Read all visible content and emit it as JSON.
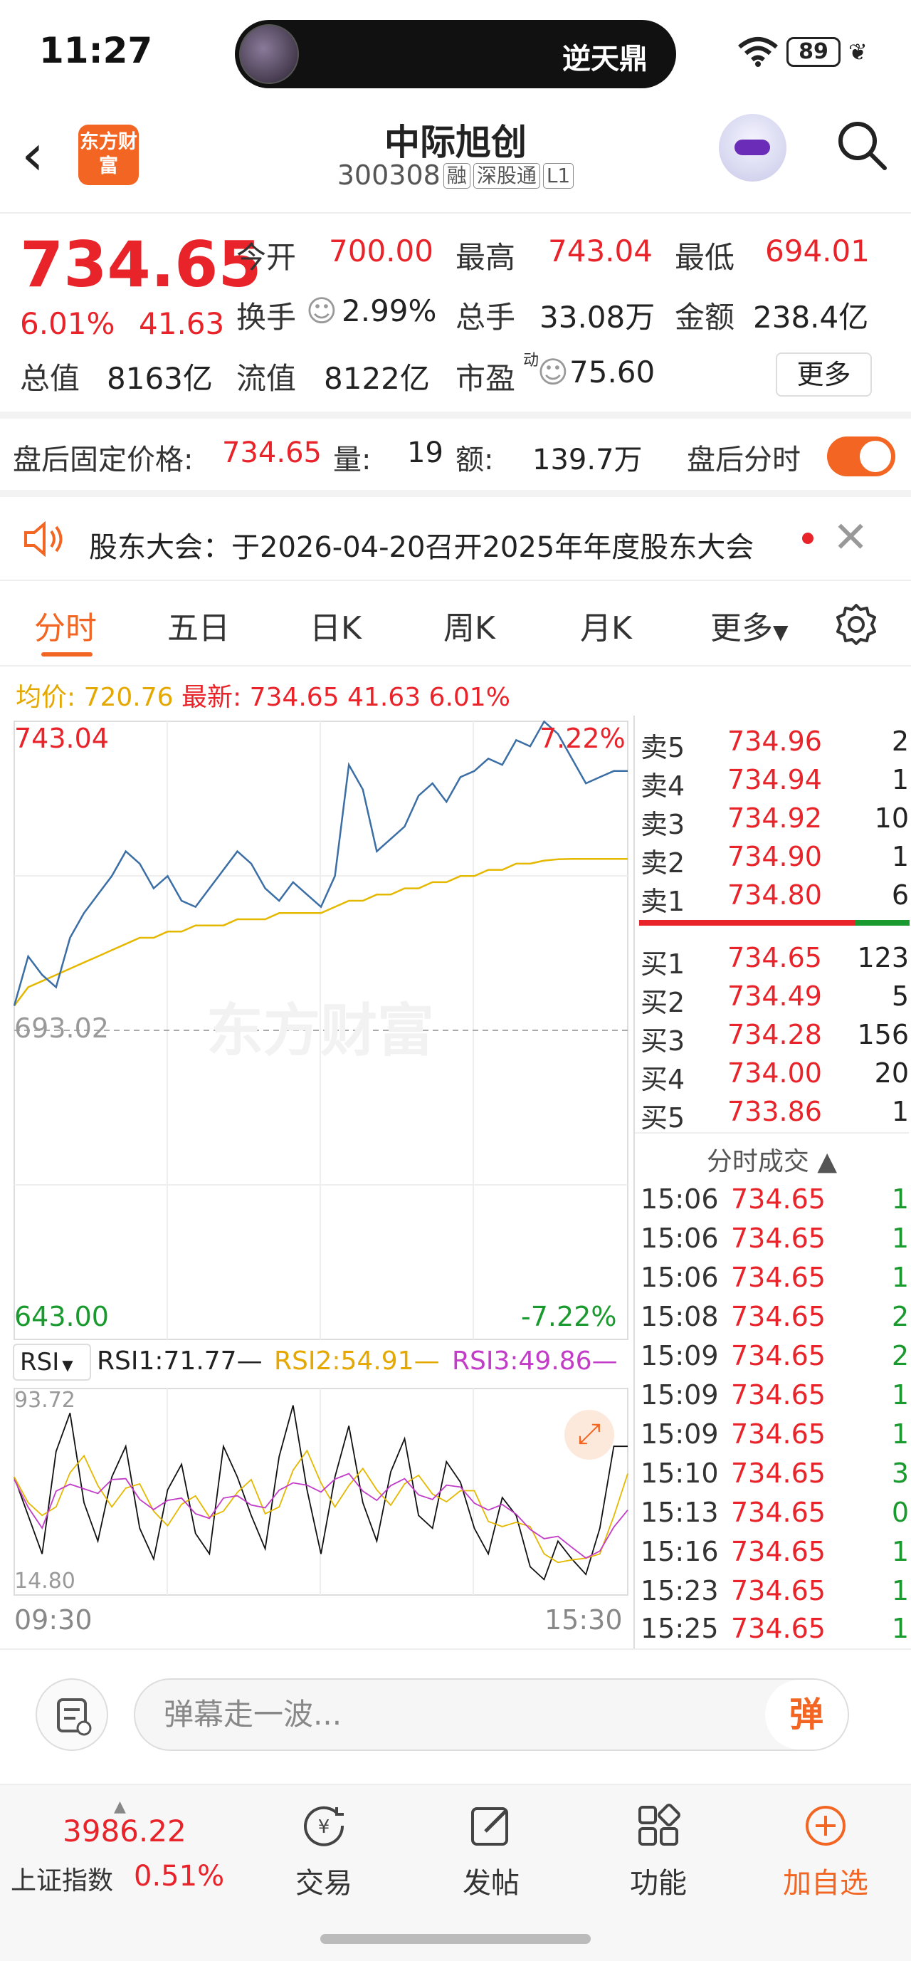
{
  "status_bar": {
    "time": "11:27",
    "island_text": "逆天鼎",
    "battery": "89"
  },
  "header": {
    "logo": "东方财富",
    "name": "中际旭创",
    "code": "300308",
    "tags": [
      "融",
      "深股通",
      "L1"
    ]
  },
  "quote": {
    "price": "734.65",
    "change_pct": "6.01%",
    "change": "41.63",
    "fields": [
      {
        "label": "今开",
        "value": "700.00",
        "color": "red"
      },
      {
        "label": "最高",
        "value": "743.04",
        "color": "red"
      },
      {
        "label": "最低",
        "value": "694.01",
        "color": "red"
      },
      {
        "label": "换手",
        "value": "2.99%",
        "color": "black"
      },
      {
        "label": "总手",
        "value": "33.08万",
        "color": "black"
      },
      {
        "label": "金额",
        "value": "238.4亿",
        "color": "black"
      },
      {
        "label": "总值",
        "value": "8163亿",
        "color": "black"
      },
      {
        "label": "流值",
        "value": "8122亿",
        "color": "black"
      },
      {
        "label": "市盈",
        "value": "75.60",
        "color": "black"
      }
    ],
    "pe_superscript": "动",
    "more": "更多"
  },
  "after_hours": {
    "label": "盘后固定价格:",
    "price": "734.65",
    "vol_label": "量:",
    "vol": "19",
    "amt_label": "额:",
    "amt": "139.7万",
    "toggle_label": "盘后分时",
    "toggle_on": true
  },
  "notice": {
    "text": "股东大会：于2026-04-20召开2025年年度股东大会"
  },
  "tabs": [
    {
      "label": "分时",
      "active": true
    },
    {
      "label": "五日",
      "active": false
    },
    {
      "label": "日K",
      "active": false
    },
    {
      "label": "周K",
      "active": false
    },
    {
      "label": "月K",
      "active": false
    },
    {
      "label": "更多",
      "active": false
    }
  ],
  "info_line": {
    "avg_label": "均价:",
    "avg": "720.76",
    "last_label": "最新:",
    "last": "734.65",
    "chg": "41.63",
    "pct": "6.01%"
  },
  "chart": {
    "y_high": "743.04",
    "y_mid": "693.02",
    "y_low": "643.00",
    "pct_high": "7.22%",
    "pct_low": "-7.22%",
    "watermark": "东方财富",
    "x_start": "09:30",
    "x_end": "15:30",
    "rsi": {
      "selector": "RSI",
      "rsi1": "RSI1:71.77—",
      "rsi2": "RSI2:54.91—",
      "rsi3": "RSI3:49.86—",
      "top": "93.72",
      "bottom": "14.80"
    }
  },
  "chart_data": {
    "type": "line",
    "title": "",
    "xlabel": "",
    "ylabel": "",
    "x_range": [
      "09:30",
      "15:30"
    ],
    "ylim": [
      643.0,
      743.04
    ],
    "series": [
      {
        "name": "最新",
        "values": [
          697,
          705,
          702,
          700,
          708,
          712,
          715,
          718,
          722,
          720,
          716,
          718,
          714,
          713,
          716,
          719,
          722,
          720,
          716,
          714,
          717,
          715,
          713,
          718,
          736,
          732,
          722,
          724,
          726,
          731,
          733,
          730,
          734,
          735,
          737,
          736,
          740,
          739,
          743,
          741,
          737,
          733,
          734,
          735,
          735
        ]
      },
      {
        "name": "均价",
        "values": [
          697,
          700,
          701,
          702,
          703,
          704,
          705,
          706,
          707,
          708,
          708,
          709,
          709,
          710,
          710,
          710,
          711,
          711,
          711,
          712,
          712,
          712,
          712,
          713,
          714,
          714,
          715,
          715,
          716,
          716,
          717,
          717,
          718,
          718,
          719,
          719,
          720,
          720,
          720.5,
          720.7,
          720.76,
          720.76,
          720.76,
          720.76,
          720.76
        ]
      }
    ]
  },
  "order_book": {
    "asks": [
      {
        "label": "卖5",
        "price": "734.96",
        "vol": "2"
      },
      {
        "label": "卖4",
        "price": "734.94",
        "vol": "1"
      },
      {
        "label": "卖3",
        "price": "734.92",
        "vol": "10"
      },
      {
        "label": "卖2",
        "price": "734.90",
        "vol": "1"
      },
      {
        "label": "卖1",
        "price": "734.80",
        "vol": "6"
      }
    ],
    "bids": [
      {
        "label": "买1",
        "price": "734.65",
        "vol": "123"
      },
      {
        "label": "买2",
        "price": "734.49",
        "vol": "5"
      },
      {
        "label": "买3",
        "price": "734.28",
        "vol": "156"
      },
      {
        "label": "买4",
        "price": "734.00",
        "vol": "20"
      },
      {
        "label": "买5",
        "price": "733.86",
        "vol": "1"
      }
    ],
    "ticks_title": "分时成交 ▲",
    "ticks": [
      {
        "time": "15:06",
        "price": "734.65",
        "vol": "1"
      },
      {
        "time": "15:06",
        "price": "734.65",
        "vol": "1"
      },
      {
        "time": "15:06",
        "price": "734.65",
        "vol": "1"
      },
      {
        "time": "15:08",
        "price": "734.65",
        "vol": "2"
      },
      {
        "time": "15:09",
        "price": "734.65",
        "vol": "2"
      },
      {
        "time": "15:09",
        "price": "734.65",
        "vol": "1"
      },
      {
        "time": "15:09",
        "price": "734.65",
        "vol": "1"
      },
      {
        "time": "15:10",
        "price": "734.65",
        "vol": "3"
      },
      {
        "time": "15:13",
        "price": "734.65",
        "vol": "0"
      },
      {
        "time": "15:16",
        "price": "734.65",
        "vol": "1"
      },
      {
        "time": "15:23",
        "price": "734.65",
        "vol": "1"
      },
      {
        "time": "15:25",
        "price": "734.65",
        "vol": "1"
      }
    ]
  },
  "comment": {
    "placeholder": "弹幕走一波...",
    "button": "弹"
  },
  "bottom_nav": {
    "index_value": "3986.22",
    "index_name": "上证指数",
    "index_pct": "0.51%",
    "items": [
      {
        "label": "交易",
        "icon": "trade-icon"
      },
      {
        "label": "发帖",
        "icon": "post-icon"
      },
      {
        "label": "功能",
        "icon": "function-icon"
      },
      {
        "label": "加自选",
        "icon": "add-watch-icon"
      }
    ]
  },
  "colors": {
    "up": "#e8232a",
    "down": "#1a9a2e",
    "accent": "#f26522",
    "avg_line": "#e5b800",
    "price_line": "#3a6ea5"
  }
}
